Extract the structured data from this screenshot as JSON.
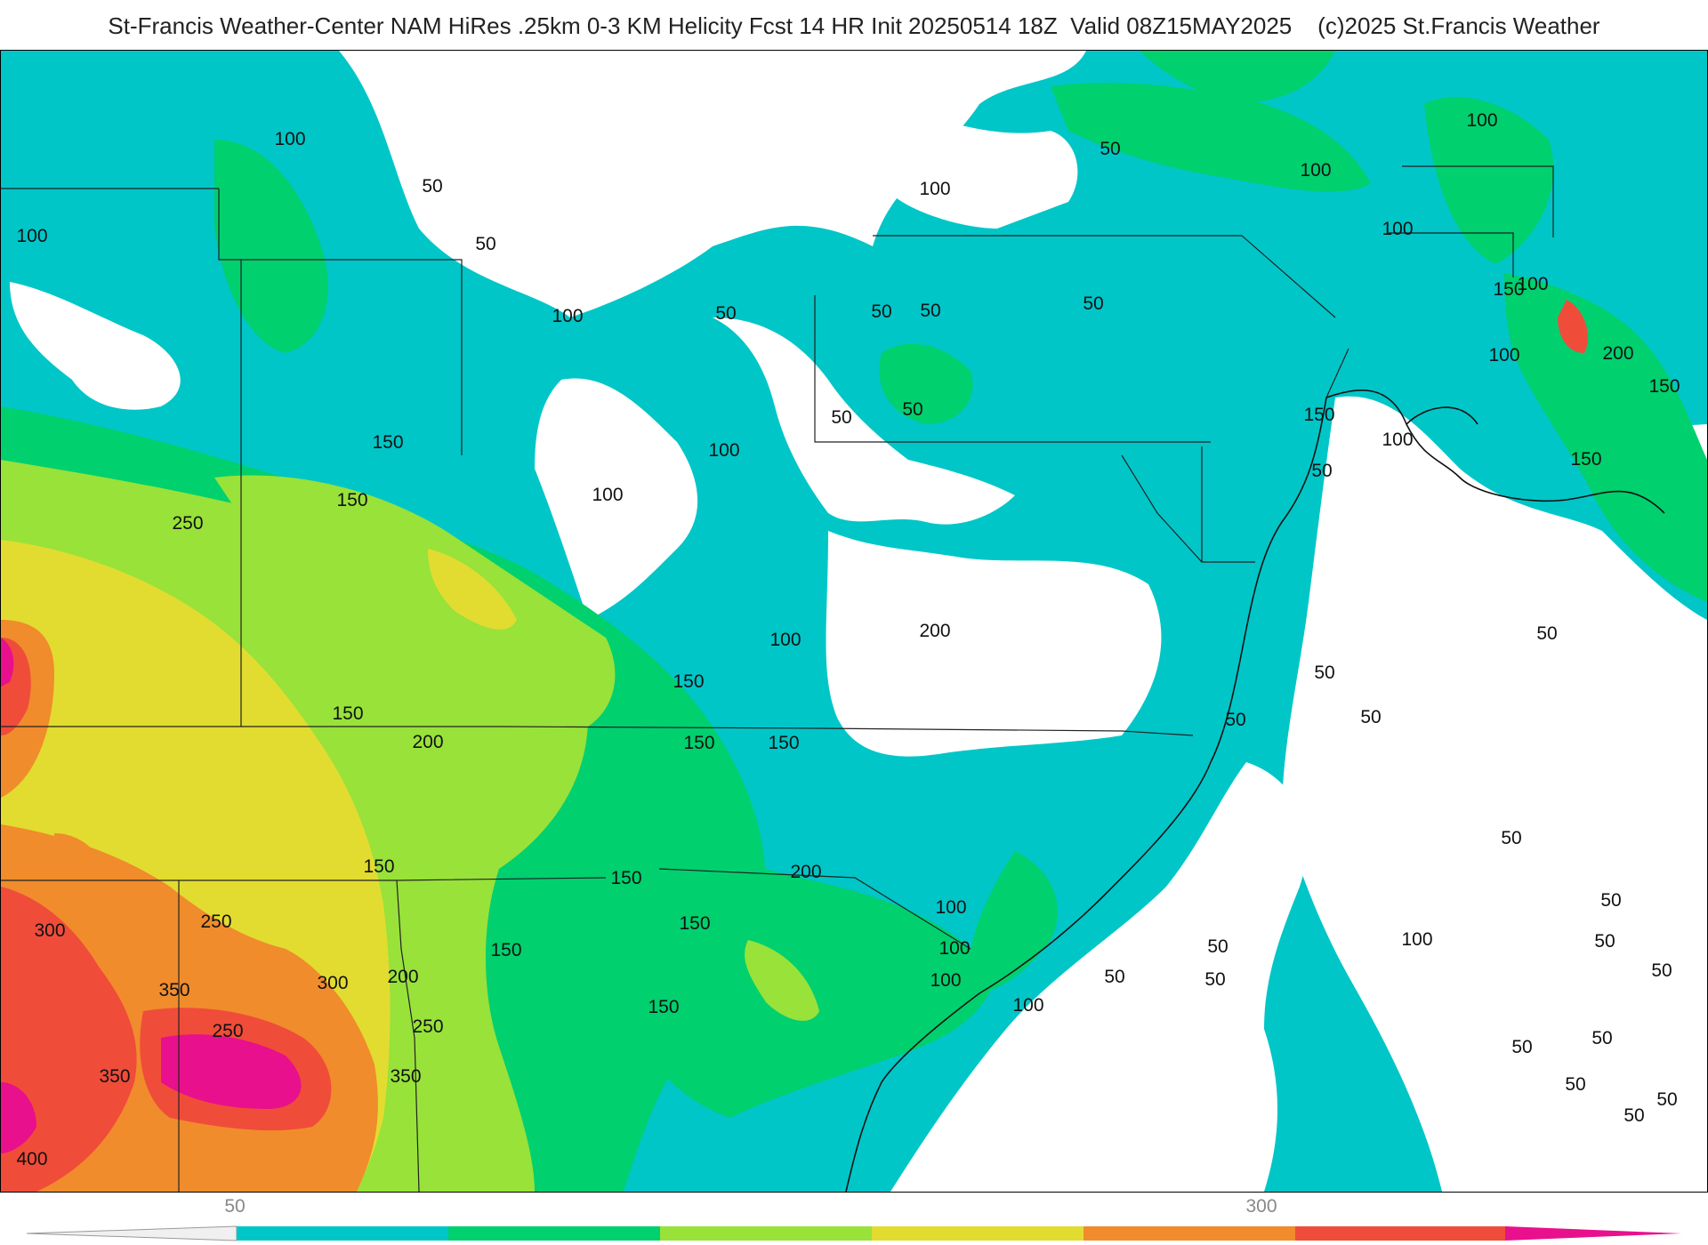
{
  "title": "St-Francis Weather-Center NAM HiRes .25km 0-3 KM Helicity Fcst 14 HR Init 20250514 18Z  Valid 08Z15MAY2025    (c)2025 St.Francis Weather",
  "palette": [
    "#00c6c8",
    "#00d06e",
    "#98e23a",
    "#e2dc30",
    "#f08c2c",
    "#f04c3a",
    "#e8108c"
  ],
  "colorbar": {
    "ticks": [
      {
        "label": "50"
      },
      {
        "label": "300"
      }
    ]
  },
  "contour_labels": [
    "100",
    "50",
    "100",
    "50",
    "50",
    "100",
    "100",
    "100",
    "50",
    "50",
    "100",
    "100",
    "50",
    "50",
    "50",
    "50",
    "100",
    "150",
    "100",
    "50",
    "100",
    "200",
    "150",
    "150",
    "150",
    "150",
    "150",
    "100",
    "200",
    "100",
    "50",
    "50",
    "100",
    "100",
    "150",
    "250",
    "50",
    "50",
    "50",
    "250",
    "150",
    "200",
    "150",
    "150",
    "150",
    "200",
    "50",
    "50",
    "50",
    "150",
    "100",
    "150",
    "50",
    "50",
    "150",
    "100",
    "300",
    "250",
    "150",
    "100",
    "50",
    "50",
    "350",
    "300",
    "200",
    "100",
    "50",
    "250",
    "50",
    "350",
    "350",
    "50",
    "50",
    "400"
  ]
}
